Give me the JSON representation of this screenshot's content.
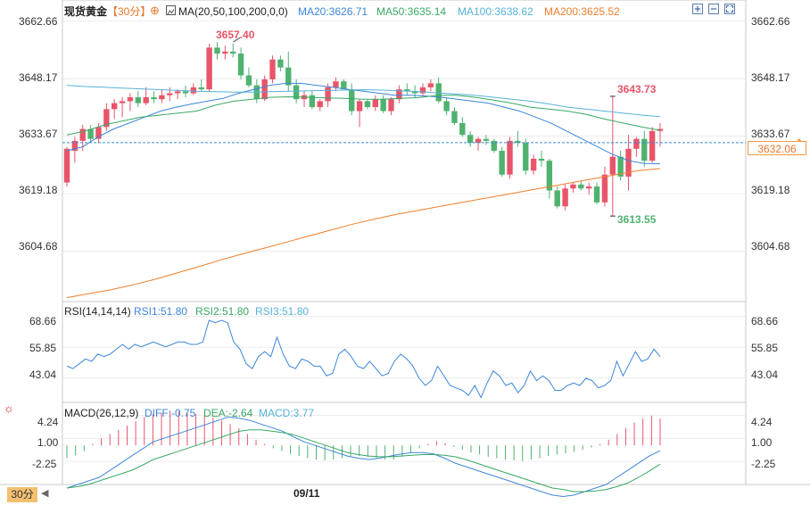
{
  "header": {
    "instrument": "现货黄金",
    "period": "【30分】",
    "ma_label": "MA(20,50,100,200,0,0)",
    "ma20": "MA20:3626.71",
    "ma50": "MA50:3635.14",
    "ma100": "MA100:3638.62",
    "ma200": "MA200:3625.52"
  },
  "rsi_header": {
    "label": "RSI(14,14,14)",
    "rsi1": "RSI1:51.80",
    "rsi2": "RSI2:51.80",
    "rsi3": "RSI3:51.80"
  },
  "macd_header": {
    "label": "MACD(26,12,9)",
    "diff": "DIFF:-0.75",
    "dea": "DEA:-2.64",
    "macd": "MACD:3.77"
  },
  "footer": {
    "period_tag": "30分",
    "date_label": "09/11"
  },
  "current_price": "3632.06",
  "colors": {
    "up": "#e8556a",
    "down": "#4fb26f",
    "ma20": "#3d86d8",
    "ma50": "#38a864",
    "ma100": "#56b2d8",
    "ma200": "#f07e2a",
    "current_line": "#3a8ad6",
    "grid": "#e0e0e0"
  },
  "icons": [
    "settings-icon",
    "ma-icon",
    "fullscreen-icon",
    "zoom-in-icon",
    "zoom-out-icon",
    "restore-icon"
  ],
  "chart_data": [
    {
      "type": "candlestick",
      "yticks": [
        "3662.66",
        "3648.17",
        "3633.67",
        "3619.18",
        "3604.68"
      ],
      "ylim": [
        3592,
        3668
      ],
      "annotations": [
        {
          "label": "3657.40",
          "type": "high"
        },
        {
          "label": "3643.73",
          "type": "high"
        },
        {
          "label": "3613.55",
          "type": "low"
        }
      ],
      "ohlc": [
        [
          3622.0,
          3631.0,
          3621.0,
          3630.5
        ],
        [
          3630.0,
          3633.5,
          3627.0,
          3632.5
        ],
        [
          3632.5,
          3636.5,
          3630.0,
          3635.5
        ],
        [
          3635.5,
          3636.5,
          3632.0,
          3633.0
        ],
        [
          3633.0,
          3637.0,
          3632.0,
          3636.0
        ],
        [
          3636.0,
          3642.0,
          3635.0,
          3640.5
        ],
        [
          3640.5,
          3643.0,
          3638.0,
          3642.0
        ],
        [
          3642.0,
          3643.5,
          3638.5,
          3642.5
        ],
        [
          3642.5,
          3644.5,
          3640.0,
          3643.5
        ],
        [
          3643.5,
          3645.0,
          3641.0,
          3642.0
        ],
        [
          3642.0,
          3646.0,
          3641.5,
          3643.5
        ],
        [
          3643.5,
          3645.0,
          3642.0,
          3643.0
        ],
        [
          3643.0,
          3645.5,
          3642.0,
          3644.0
        ],
        [
          3644.0,
          3646.0,
          3642.5,
          3644.5
        ],
        [
          3644.5,
          3645.5,
          3643.0,
          3645.0
        ],
        [
          3645.0,
          3646.5,
          3643.5,
          3644.5
        ],
        [
          3644.5,
          3647.0,
          3644.0,
          3646.0
        ],
        [
          3646.0,
          3648.0,
          3645.0,
          3645.5
        ],
        [
          3645.5,
          3657.0,
          3645.0,
          3656.0
        ],
        [
          3656.0,
          3657.4,
          3653.0,
          3654.5
        ],
        [
          3654.5,
          3656.5,
          3653.0,
          3655.0
        ],
        [
          3655.0,
          3657.0,
          3653.5,
          3654.5
        ],
        [
          3654.5,
          3656.0,
          3648.0,
          3649.0
        ],
        [
          3649.0,
          3651.0,
          3646.0,
          3646.5
        ],
        [
          3646.5,
          3648.0,
          3642.0,
          3643.0
        ],
        [
          3643.0,
          3649.0,
          3642.5,
          3648.0
        ],
        [
          3648.0,
          3654.0,
          3647.0,
          3653.0
        ],
        [
          3653.0,
          3654.0,
          3650.0,
          3651.0
        ],
        [
          3651.0,
          3655.0,
          3645.0,
          3646.5
        ],
        [
          3646.5,
          3648.0,
          3642.0,
          3643.0
        ],
        [
          3643.0,
          3645.0,
          3641.0,
          3644.0
        ],
        [
          3644.0,
          3645.0,
          3640.5,
          3641.0
        ],
        [
          3641.0,
          3643.0,
          3640.0,
          3642.5
        ],
        [
          3642.5,
          3647.0,
          3641.0,
          3646.0
        ],
        [
          3646.0,
          3648.5,
          3645.0,
          3647.5
        ],
        [
          3647.5,
          3648.0,
          3645.5,
          3645.5
        ],
        [
          3645.5,
          3647.0,
          3639.0,
          3640.0
        ],
        [
          3640.0,
          3643.0,
          3636.0,
          3642.5
        ],
        [
          3642.5,
          3643.0,
          3640.5,
          3641.0
        ],
        [
          3641.0,
          3644.0,
          3640.0,
          3643.0
        ],
        [
          3643.0,
          3644.0,
          3639.5,
          3640.0
        ],
        [
          3640.0,
          3643.5,
          3639.0,
          3643.0
        ],
        [
          3643.0,
          3646.5,
          3642.0,
          3645.5
        ],
        [
          3645.5,
          3647.0,
          3644.0,
          3645.0
        ],
        [
          3645.0,
          3646.5,
          3643.5,
          3644.5
        ],
        [
          3644.5,
          3647.0,
          3644.0,
          3646.0
        ],
        [
          3646.0,
          3648.0,
          3645.0,
          3647.0
        ],
        [
          3647.0,
          3648.5,
          3642.0,
          3642.5
        ],
        [
          3642.5,
          3643.5,
          3639.0,
          3640.0
        ],
        [
          3640.0,
          3641.0,
          3636.5,
          3637.0
        ],
        [
          3637.0,
          3638.5,
          3633.5,
          3634.0
        ],
        [
          3634.0,
          3635.0,
          3631.0,
          3632.0
        ],
        [
          3632.0,
          3633.5,
          3630.0,
          3633.0
        ],
        [
          3633.0,
          3634.0,
          3631.5,
          3632.5
        ],
        [
          3632.5,
          3633.0,
          3629.5,
          3630.0
        ],
        [
          3630.0,
          3631.0,
          3623.5,
          3624.0
        ],
        [
          3624.0,
          3633.5,
          3623.0,
          3632.5
        ],
        [
          3632.5,
          3635.0,
          3631.0,
          3632.0
        ],
        [
          3632.0,
          3633.0,
          3624.0,
          3625.0
        ],
        [
          3625.0,
          3629.0,
          3624.0,
          3628.0
        ],
        [
          3628.0,
          3630.0,
          3626.0,
          3627.5
        ],
        [
          3627.5,
          3628.0,
          3618.0,
          3620.0
        ],
        [
          3620.0,
          3621.0,
          3615.5,
          3616.0
        ],
        [
          3616.0,
          3621.5,
          3615.0,
          3620.5
        ],
        [
          3620.5,
          3622.0,
          3619.5,
          3621.5
        ],
        [
          3621.5,
          3622.5,
          3620.0,
          3620.5
        ],
        [
          3620.5,
          3622.0,
          3619.0,
          3621.0
        ],
        [
          3621.0,
          3622.0,
          3616.5,
          3617.0
        ],
        [
          3617.0,
          3626.0,
          3616.0,
          3624.0
        ],
        [
          3624.0,
          3643.73,
          3613.55,
          3628.5
        ],
        [
          3628.5,
          3630.0,
          3622.5,
          3623.5
        ],
        [
          3623.5,
          3634.0,
          3620.0,
          3630.5
        ],
        [
          3630.5,
          3633.5,
          3628.5,
          3633.0
        ],
        [
          3633.0,
          3635.0,
          3626.0,
          3627.5
        ],
        [
          3627.5,
          3636.0,
          3627.0,
          3635.0
        ],
        [
          3635.0,
          3637.0,
          3631.0,
          3635.5
        ]
      ],
      "ma": [
        {
          "name": "MA20",
          "values": [
            3630.0,
            3631.0,
            3633.5,
            3635.5,
            3637.0,
            3638.5,
            3640.0,
            3641.0,
            3641.8,
            3642.5,
            3643.2,
            3644.5,
            3645.5,
            3646.5,
            3647.0,
            3647.0,
            3646.5,
            3646.0,
            3645.5,
            3645.0,
            3644.5,
            3644.0,
            3644.0,
            3643.8,
            3643.5,
            3643.0,
            3642.5,
            3642.0,
            3641.0,
            3640.0,
            3638.5,
            3637.0,
            3635.0,
            3633.0,
            3631.0,
            3629.0,
            3627.5,
            3626.8,
            3626.71
          ]
        },
        {
          "name": "MA50",
          "values": [
            3634.0,
            3635.0,
            3636.5,
            3637.5,
            3638.5,
            3639.0,
            3639.5,
            3640.0,
            3641.5,
            3642.5,
            3643.0,
            3643.5,
            3643.6,
            3643.5,
            3643.3,
            3643.2,
            3643.0,
            3643.0,
            3643.2,
            3643.4,
            3644.0,
            3644.0,
            3643.5,
            3642.8,
            3642.0,
            3641.0,
            3640.5,
            3640.0,
            3639.2,
            3638.0,
            3637.0,
            3636.0,
            3635.14
          ]
        },
        {
          "name": "MA100",
          "values": [
            3646.5,
            3646.2,
            3646.0,
            3645.8,
            3645.6,
            3645.4,
            3645.2,
            3645.0,
            3644.9,
            3644.8,
            3644.8,
            3644.9,
            3645.0,
            3645.1,
            3645.2,
            3645.3,
            3645.4,
            3645.3,
            3645.1,
            3644.9,
            3644.6,
            3644.3,
            3644.0,
            3643.5,
            3643.0,
            3642.5,
            3641.8,
            3641.0,
            3640.5,
            3640.0,
            3639.5,
            3639.0,
            3638.62
          ]
        },
        {
          "name": "MA200",
          "values": [
            3593.0,
            3594.0,
            3595.0,
            3596.2,
            3597.6,
            3599.2,
            3600.8,
            3602.5,
            3604.0,
            3605.5,
            3607.0,
            3608.5,
            3610.0,
            3611.5,
            3612.8,
            3614.0,
            3615.0,
            3616.0,
            3617.0,
            3618.0,
            3619.0,
            3620.0,
            3621.0,
            3622.0,
            3623.0,
            3624.0,
            3625.0,
            3625.52
          ]
        }
      ]
    },
    {
      "type": "line",
      "title": "RSI(14,14,14)",
      "yticks": [
        "68.66",
        "55.85",
        "43.04"
      ],
      "ylim": [
        33,
        74
      ],
      "values": [
        48,
        47,
        49,
        51,
        50,
        53,
        52,
        53,
        55,
        57,
        55,
        57,
        56,
        57,
        58,
        57,
        56,
        57,
        58,
        58,
        57,
        57,
        58,
        67,
        66,
        67,
        66,
        58,
        55,
        49,
        47,
        52,
        54,
        52,
        60,
        53,
        48,
        47,
        51,
        50,
        48,
        48,
        44,
        45,
        53,
        55,
        52,
        48,
        47,
        50,
        47,
        44,
        45,
        50,
        53,
        51,
        48,
        43,
        40,
        42,
        48,
        44,
        40,
        39,
        38,
        36,
        40,
        35,
        41,
        46,
        44,
        40,
        41,
        37,
        40,
        46,
        42,
        44,
        42,
        38,
        38,
        40,
        41,
        40,
        43,
        42,
        39,
        40,
        42,
        50,
        44,
        49,
        54,
        50,
        51,
        55,
        52
      ]
    },
    {
      "type": "bar_line",
      "title": "MACD(26,12,9)",
      "yticks": [
        "4.24",
        "1.00",
        "-2.25"
      ],
      "ylim": [
        -5.5,
        5.8
      ],
      "diff": [
        -6.0,
        -5.5,
        -5.0,
        -4.5,
        -3.5,
        -2.5,
        -1.5,
        -0.5,
        0.5,
        1.0,
        1.5,
        2.0,
        2.5,
        3.0,
        3.5,
        4.0,
        3.8,
        3.5,
        3.0,
        2.5,
        2.0,
        1.2,
        0.5,
        0.0,
        -0.5,
        -1.0,
        -1.5,
        -1.8,
        -2.0,
        -1.8,
        -1.5,
        -1.2,
        -1.0,
        -1.0,
        -1.2,
        -1.8,
        -2.5,
        -3.0,
        -3.5,
        -4.0,
        -4.5,
        -5.0,
        -5.5,
        -6.0,
        -6.5,
        -7.0,
        -7.2,
        -7.0,
        -6.5,
        -6.0,
        -5.5,
        -4.5,
        -3.5,
        -2.5,
        -1.5,
        -0.75
      ],
      "dea": [
        -6.0,
        -5.8,
        -5.5,
        -5.0,
        -4.5,
        -4.0,
        -3.5,
        -2.8,
        -2.0,
        -1.5,
        -1.0,
        -0.5,
        0.0,
        0.5,
        1.0,
        1.5,
        2.0,
        2.2,
        2.2,
        2.0,
        1.8,
        1.5,
        1.0,
        0.5,
        0.0,
        -0.5,
        -1.0,
        -1.3,
        -1.5,
        -1.6,
        -1.6,
        -1.5,
        -1.4,
        -1.3,
        -1.3,
        -1.4,
        -1.6,
        -2.0,
        -2.5,
        -3.0,
        -3.5,
        -4.0,
        -4.5,
        -5.0,
        -5.5,
        -6.0,
        -6.2,
        -6.5,
        -6.5,
        -6.4,
        -6.2,
        -5.8,
        -5.3,
        -4.5,
        -3.6,
        -2.64
      ],
      "macd": [
        -1.8,
        -1.4,
        -0.8,
        0.2,
        1.0,
        1.6,
        2.2,
        2.8,
        3.4,
        4.0,
        4.4,
        4.6,
        4.8,
        4.8,
        4.6,
        4.4,
        4.2,
        3.9,
        3.5,
        3.0,
        2.4,
        1.6,
        0.8,
        0.2,
        -0.4,
        -0.8,
        -1.2,
        -1.5,
        -1.8,
        -2.0,
        -2.1,
        -2.0,
        -1.8,
        -1.6,
        -1.5,
        -1.6,
        -1.8,
        -2.0,
        -2.0,
        -1.6,
        -1.0,
        -0.4,
        0.2,
        0.6,
        0.3,
        -0.2,
        -0.6,
        -1.0,
        -1.3,
        -1.6,
        -1.8,
        -2.0,
        -2.1,
        -2.2,
        -2.0,
        -1.8,
        -1.5,
        -1.3,
        -1.1,
        -0.9,
        -0.6,
        -0.3,
        0.2,
        0.8,
        1.6,
        2.4,
        3.2,
        3.8,
        4.2,
        3.77
      ]
    }
  ]
}
